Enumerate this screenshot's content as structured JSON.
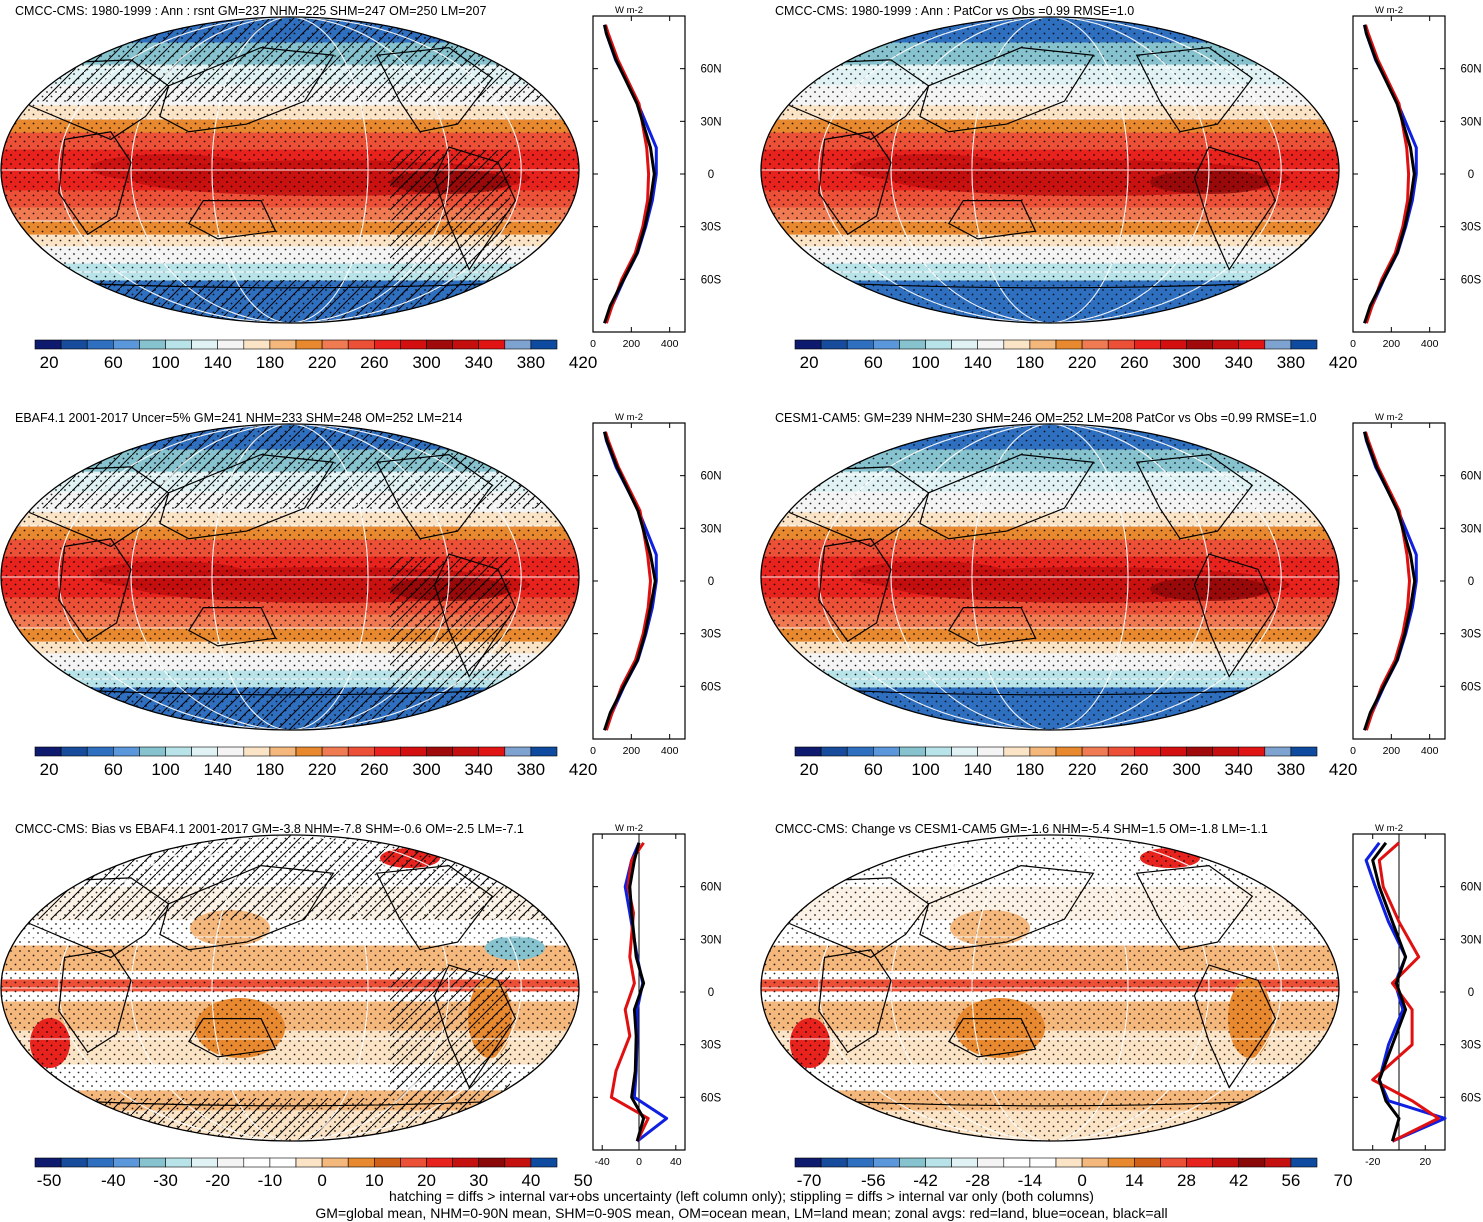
{
  "panels": [
    {
      "title": "CMCC-CMS: 1980-1999 : Ann : rsnt GM=237 NHM=225 SHM=247 OM=250 LM=207",
      "kind": "abs",
      "hatch": true,
      "colorbar": {
        "labels": [
          "20",
          "60",
          "100",
          "140",
          "180",
          "220",
          "260",
          "300",
          "340",
          "380",
          "420"
        ]
      },
      "zonal": {
        "unit_label": "W m-2",
        "x_ticks": [
          "0",
          "200",
          "400"
        ],
        "xlim": [
          0,
          480
        ],
        "lat_labels": [
          "60N",
          "30N",
          "0",
          "30S",
          "60S"
        ]
      }
    },
    {
      "title": "CMCC-CMS: 1980-1999 : Ann : PatCor vs Obs =0.99 RMSE=1.0",
      "kind": "abs",
      "hatch": false,
      "colorbar": {
        "labels": [
          "20",
          "60",
          "100",
          "140",
          "180",
          "220",
          "260",
          "300",
          "340",
          "380",
          "420"
        ]
      },
      "zonal": {
        "unit_label": "W m-2",
        "x_ticks": [
          "0",
          "200",
          "400"
        ],
        "xlim": [
          0,
          480
        ],
        "lat_labels": [
          "60N",
          "30N",
          "0",
          "30S",
          "60S"
        ]
      }
    },
    {
      "title": "EBAF4.1 2001-2017 Uncer=5% GM=241 NHM=233 SHM=248 OM=252 LM=214",
      "kind": "abs",
      "hatch": true,
      "colorbar": {
        "labels": [
          "20",
          "60",
          "100",
          "140",
          "180",
          "220",
          "260",
          "300",
          "340",
          "380",
          "420"
        ]
      },
      "zonal": {
        "unit_label": "W m-2",
        "x_ticks": [
          "0",
          "200",
          "400"
        ],
        "xlim": [
          0,
          480
        ],
        "lat_labels": [
          "60N",
          "30N",
          "0",
          "30S",
          "60S"
        ]
      }
    },
    {
      "title": "CESM1-CAM5: GM=239 NHM=230 SHM=246 OM=252 LM=208 PatCor vs Obs =0.99 RMSE=1.0",
      "kind": "abs",
      "hatch": false,
      "colorbar": {
        "labels": [
          "20",
          "60",
          "100",
          "140",
          "180",
          "220",
          "260",
          "300",
          "340",
          "380",
          "420"
        ]
      },
      "zonal": {
        "unit_label": "W m-2",
        "x_ticks": [
          "0",
          "200",
          "400"
        ],
        "xlim": [
          0,
          480
        ],
        "lat_labels": [
          "60N",
          "30N",
          "0",
          "30S",
          "60S"
        ]
      }
    },
    {
      "title": "CMCC-CMS: Bias vs EBAF4.1 2001-2017 GM=-3.8 NHM=-7.8 SHM=-0.6 OM=-2.5 LM=-7.1",
      "kind": "diff",
      "hatch": true,
      "colorbar": {
        "labels": [
          "-50",
          "-40",
          "-30",
          "-20",
          "-10",
          "0",
          "10",
          "20",
          "30",
          "40",
          "50"
        ]
      },
      "zonal": {
        "unit_label": "W m-2",
        "x_ticks": [
          "-40",
          "0",
          "40"
        ],
        "xlim": [
          -50,
          50
        ],
        "lat_labels": [
          "60N",
          "30N",
          "0",
          "30S",
          "60S"
        ]
      }
    },
    {
      "title": "CMCC-CMS: Change vs CESM1-CAM5 GM=-1.6 NHM=-5.4 SHM=1.5 OM=-1.8 LM=-1.1",
      "kind": "diff",
      "hatch": false,
      "colorbar": {
        "labels": [
          "-70",
          "-56",
          "-42",
          "-28",
          "-14",
          "0",
          "14",
          "28",
          "42",
          "56",
          "70"
        ]
      },
      "zonal": {
        "unit_label": "W m-2",
        "x_ticks": [
          "-20",
          "20"
        ],
        "xlim": [
          -35,
          35
        ],
        "lat_labels": [
          "60N",
          "30N",
          "0",
          "30S",
          "60S"
        ]
      }
    }
  ],
  "chart_data": [
    {
      "type": "line",
      "title": "CMCC-CMS: 1980-1999 : Ann : rsnt GM=237 NHM=225 SHM=247 OM=250 LM=207",
      "xlabel": "W m-2",
      "xlim": [
        0,
        480
      ],
      "ylim": [
        -90,
        90
      ],
      "series": [
        {
          "name": "all",
          "x": [
            60,
            70,
            120,
            230,
            300,
            320,
            300,
            270,
            230,
            160,
            90,
            60
          ],
          "y": [
            85,
            80,
            65,
            40,
            15,
            0,
            -15,
            -30,
            -45,
            -60,
            -75,
            -85
          ]
        },
        {
          "name": "land",
          "x": [
            65,
            80,
            130,
            240,
            280,
            290,
            285,
            260,
            220,
            150,
            100,
            70
          ],
          "y": [
            85,
            80,
            65,
            40,
            15,
            0,
            -15,
            -30,
            -45,
            -60,
            -75,
            -85
          ]
        },
        {
          "name": "ocean",
          "x": [
            60,
            70,
            118,
            235,
            330,
            330,
            310,
            275,
            232,
            162,
            100,
            60
          ],
          "y": [
            85,
            80,
            65,
            40,
            15,
            0,
            -15,
            -30,
            -45,
            -60,
            -75,
            -85
          ]
        }
      ]
    },
    {
      "type": "line",
      "title": "CMCC-CMS: 1980-1999 : Ann : PatCor vs Obs =0.99 RMSE=1.0",
      "xlabel": "W m-2",
      "xlim": [
        0,
        480
      ],
      "ylim": [
        -90,
        90
      ],
      "series": [
        {
          "name": "all",
          "x": [
            60,
            70,
            120,
            230,
            300,
            320,
            300,
            270,
            230,
            160,
            90,
            60
          ],
          "y": [
            85,
            80,
            65,
            40,
            15,
            0,
            -15,
            -30,
            -45,
            -60,
            -75,
            -85
          ]
        },
        {
          "name": "land",
          "x": [
            65,
            80,
            130,
            240,
            280,
            290,
            285,
            260,
            220,
            150,
            100,
            70
          ],
          "y": [
            85,
            80,
            65,
            40,
            15,
            0,
            -15,
            -30,
            -45,
            -60,
            -75,
            -85
          ]
        },
        {
          "name": "ocean",
          "x": [
            60,
            70,
            118,
            235,
            330,
            330,
            310,
            275,
            232,
            162,
            100,
            60
          ],
          "y": [
            85,
            80,
            65,
            40,
            15,
            0,
            -15,
            -30,
            -45,
            -60,
            -75,
            -85
          ]
        }
      ]
    },
    {
      "type": "line",
      "title": "EBAF4.1 2001-2017 Uncer=5% GM=241 NHM=233 SHM=248 OM=252 LM=214",
      "xlabel": "W m-2",
      "xlim": [
        0,
        480
      ],
      "ylim": [
        -90,
        90
      ],
      "series": [
        {
          "name": "all",
          "x": [
            60,
            72,
            125,
            235,
            300,
            325,
            300,
            272,
            232,
            160,
            90,
            60
          ],
          "y": [
            85,
            80,
            65,
            40,
            15,
            0,
            -15,
            -30,
            -45,
            -60,
            -75,
            -85
          ]
        },
        {
          "name": "land",
          "x": [
            65,
            80,
            132,
            245,
            285,
            300,
            288,
            262,
            222,
            150,
            100,
            70
          ],
          "y": [
            85,
            80,
            65,
            40,
            15,
            0,
            -15,
            -30,
            -45,
            -60,
            -75,
            -85
          ]
        },
        {
          "name": "ocean",
          "x": [
            60,
            70,
            120,
            238,
            330,
            330,
            310,
            276,
            234,
            162,
            100,
            60
          ],
          "y": [
            85,
            80,
            65,
            40,
            15,
            0,
            -15,
            -30,
            -45,
            -60,
            -75,
            -85
          ]
        }
      ]
    },
    {
      "type": "line",
      "title": "CESM1-CAM5: GM=239 NHM=230 SHM=246 OM=252 LM=208 PatCor vs Obs =0.99 RMSE=1.0",
      "xlabel": "W m-2",
      "xlim": [
        0,
        480
      ],
      "ylim": [
        -90,
        90
      ],
      "series": [
        {
          "name": "all",
          "x": [
            60,
            72,
            122,
            232,
            300,
            322,
            300,
            270,
            230,
            160,
            90,
            60
          ],
          "y": [
            85,
            80,
            65,
            40,
            15,
            0,
            -15,
            -30,
            -45,
            -60,
            -75,
            -85
          ]
        },
        {
          "name": "land",
          "x": [
            65,
            80,
            130,
            242,
            282,
            295,
            285,
            260,
            220,
            150,
            100,
            70
          ],
          "y": [
            85,
            80,
            65,
            40,
            15,
            0,
            -15,
            -30,
            -45,
            -60,
            -75,
            -85
          ]
        },
        {
          "name": "ocean",
          "x": [
            60,
            70,
            118,
            236,
            330,
            330,
            310,
            275,
            232,
            162,
            100,
            60
          ],
          "y": [
            85,
            80,
            65,
            40,
            15,
            0,
            -15,
            -30,
            -45,
            -60,
            -75,
            -85
          ]
        }
      ]
    },
    {
      "type": "line",
      "title": "CMCC-CMS: Bias vs EBAF4.1 2001-2017 GM=-3.8 NHM=-7.8 SHM=-0.6 OM=-2.5 LM=-7.1",
      "xlabel": "W m-2",
      "xlim": [
        -50,
        50
      ],
      "ylim": [
        -90,
        90
      ],
      "series": [
        {
          "name": "all",
          "x": [
            0,
            -5,
            -10,
            -8,
            -3,
            5,
            -5,
            -3,
            -4,
            -8,
            5,
            -2
          ],
          "y": [
            85,
            75,
            60,
            45,
            20,
            5,
            -10,
            -25,
            -45,
            -60,
            -72,
            -85
          ]
        },
        {
          "name": "land",
          "x": [
            5,
            -8,
            -12,
            -6,
            -10,
            -5,
            -15,
            -10,
            -25,
            -30,
            10,
            -2
          ],
          "y": [
            85,
            75,
            60,
            45,
            20,
            5,
            -10,
            -25,
            -45,
            -60,
            -72,
            -85
          ]
        },
        {
          "name": "ocean",
          "x": [
            0,
            -8,
            -15,
            -10,
            -2,
            4,
            -2,
            -2,
            -3,
            -5,
            30,
            -2
          ],
          "y": [
            85,
            75,
            60,
            45,
            20,
            5,
            -10,
            -25,
            -45,
            -60,
            -72,
            -85
          ]
        }
      ]
    },
    {
      "type": "line",
      "title": "CMCC-CMS: Change vs CESM1-CAM5 GM=-1.6 NHM=-5.4 SHM=1.5 OM=-1.8 LM=-1.1",
      "xlabel": "W m-2",
      "xlim": [
        -35,
        35
      ],
      "ylim": [
        -90,
        90
      ],
      "series": [
        {
          "name": "all",
          "x": [
            -10,
            -20,
            -15,
            -5,
            5,
            -2,
            5,
            -5,
            -15,
            -10,
            0,
            -5
          ],
          "y": [
            85,
            75,
            60,
            40,
            20,
            5,
            -10,
            -30,
            -50,
            -62,
            -72,
            -85
          ]
        },
        {
          "name": "land",
          "x": [
            0,
            -15,
            -12,
            0,
            15,
            -5,
            10,
            10,
            -20,
            10,
            30,
            -5
          ],
          "y": [
            85,
            75,
            60,
            40,
            20,
            5,
            -10,
            -30,
            -50,
            -62,
            -72,
            -85
          ]
        },
        {
          "name": "ocean",
          "x": [
            -15,
            -25,
            -18,
            -8,
            5,
            -3,
            3,
            -8,
            -15,
            -8,
            35,
            -5
          ],
          "y": [
            85,
            75,
            60,
            40,
            20,
            5,
            -10,
            -30,
            -50,
            -62,
            -72,
            -85
          ]
        }
      ]
    }
  ],
  "footer": {
    "line1": "hatching = diffs > internal var+obs uncertainty (left column only); stippling = diffs > internal var only (both columns)",
    "line2": "GM=global mean, NHM=0-90N mean, SHM=0-90S mean, OM=ocean mean, LM=land mean; zonal avgs: red=land, blue=ocean, black=all"
  },
  "colors": {
    "abs_palette": [
      "#0d1a6e",
      "#174c9c",
      "#2f6fc0",
      "#5a98db",
      "#86c3cf",
      "#b8e4e9",
      "#e0f2f4",
      "#f4f4f4",
      "#fbe3c6",
      "#f4b77c",
      "#e8892f",
      "#f07a52",
      "#ec5037",
      "#e8231e",
      "#d40f0f",
      "#a00a0a",
      "#c50e0e",
      "#e11414",
      "#7fa3d1",
      "#0e4ba0"
    ],
    "diff_palette": [
      "#0d1a6e",
      "#174c9c",
      "#2f6fc0",
      "#5a98db",
      "#86c3cf",
      "#b8e4e9",
      "#e0f2f4",
      "#f4f4f4",
      "#ffffff",
      "#ffffff",
      "#fbe3c6",
      "#f4b77c",
      "#e8892f",
      "#d06018",
      "#ec5037",
      "#e8231e",
      "#c51010",
      "#8a0808",
      "#c51010",
      "#0e4ba0"
    ],
    "land_line": "#e01010",
    "ocean_line": "#1020e0",
    "all_line": "#000000"
  }
}
